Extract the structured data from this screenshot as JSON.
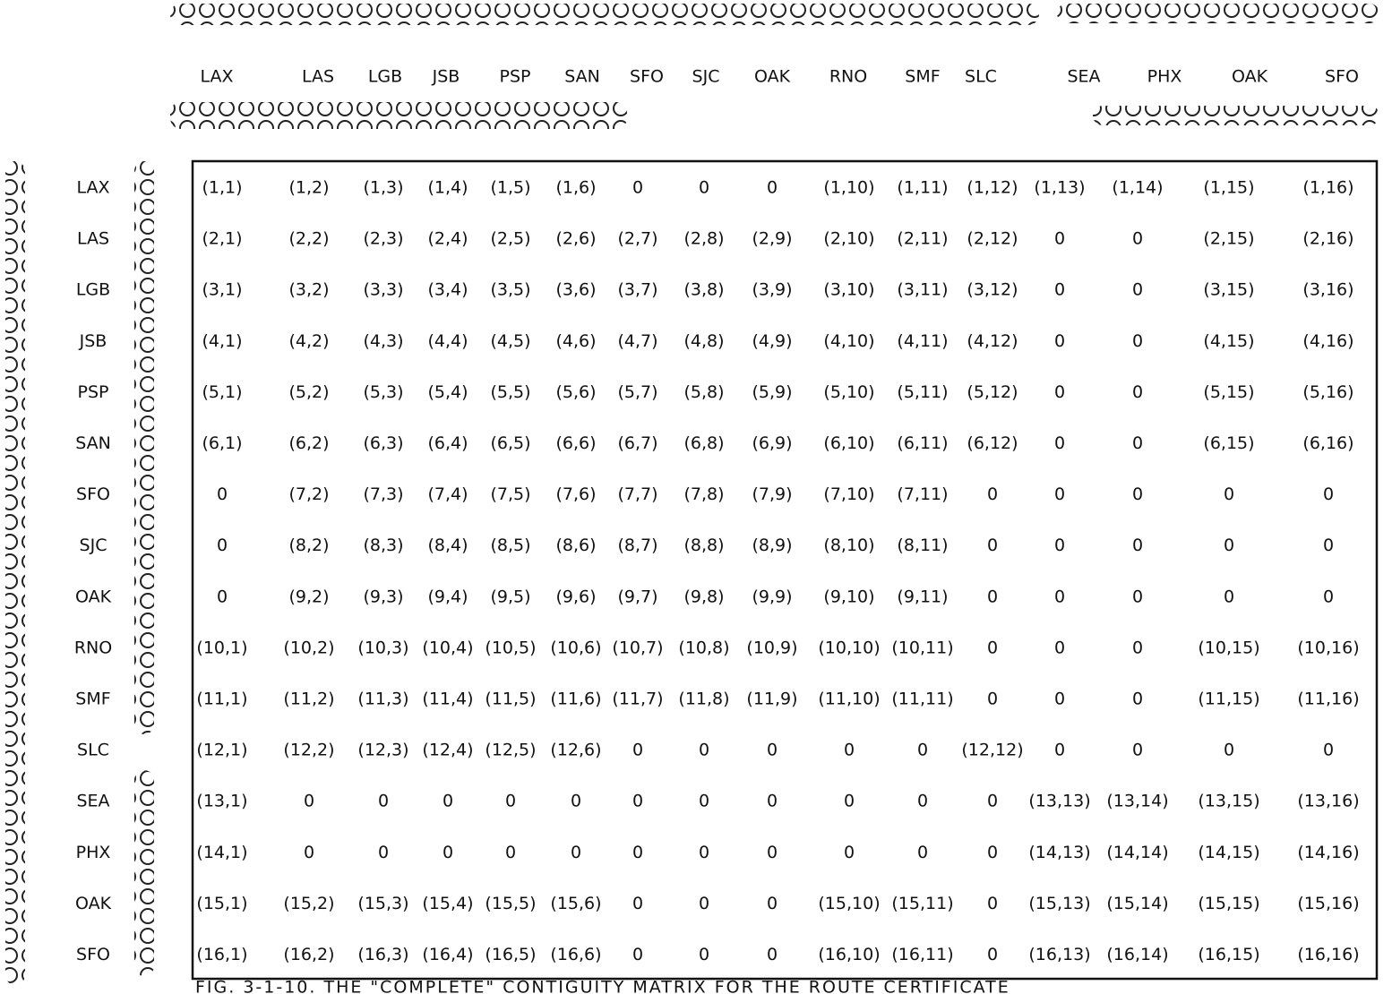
{
  "column_headers": [
    "LAX",
    "LAS",
    "LGB",
    "JSB",
    "PSP",
    "SAN",
    "SFO",
    "SJC",
    "OAK",
    "RNO",
    "SMF",
    "SLC",
    "SEA",
    "PHX",
    "OAK",
    "SFO"
  ],
  "row_headers": [
    "LAX",
    "LAS",
    "LGB",
    "JSB",
    "PSP",
    "SAN",
    "SFO",
    "SJC",
    "OAK",
    "RNO",
    "SMF",
    "SLC",
    "SEA",
    "PHX",
    "OAK",
    "SFO"
  ],
  "table": {
    "rows": [
      [
        "(1,1)",
        "(1,2)",
        "(1,3)",
        "(1,4)",
        "(1,5)",
        "(1,6)",
        "0",
        "0",
        "0",
        "(1,10)",
        "(1,11)",
        "(1,12)",
        "(1,13)",
        "(1,14)",
        "(1,15)",
        "(1,16)"
      ],
      [
        "(2,1)",
        "(2,2)",
        "(2,3)",
        "(2,4)",
        "(2,5)",
        "(2,6)",
        "(2,7)",
        "(2,8)",
        "(2,9)",
        "(2,10)",
        "(2,11)",
        "(2,12)",
        "0",
        "0",
        "(2,15)",
        "(2,16)"
      ],
      [
        "(3,1)",
        "(3,2)",
        "(3,3)",
        "(3,4)",
        "(3,5)",
        "(3,6)",
        "(3,7)",
        "(3,8)",
        "(3,9)",
        "(3,10)",
        "(3,11)",
        "(3,12)",
        "0",
        "0",
        "(3,15)",
        "(3,16)"
      ],
      [
        "(4,1)",
        "(4,2)",
        "(4,3)",
        "(4,4)",
        "(4,5)",
        "(4,6)",
        "(4,7)",
        "(4,8)",
        "(4,9)",
        "(4,10)",
        "(4,11)",
        "(4,12)",
        "0",
        "0",
        "(4,15)",
        "(4,16)"
      ],
      [
        "(5,1)",
        "(5,2)",
        "(5,3)",
        "(5,4)",
        "(5,5)",
        "(5,6)",
        "(5,7)",
        "(5,8)",
        "(5,9)",
        "(5,10)",
        "(5,11)",
        "(5,12)",
        "0",
        "0",
        "(5,15)",
        "(5,16)"
      ],
      [
        "(6,1)",
        "(6,2)",
        "(6,3)",
        "(6,4)",
        "(6,5)",
        "(6,6)",
        "(6,7)",
        "(6,8)",
        "(6,9)",
        "(6,10)",
        "(6,11)",
        "(6,12)",
        "0",
        "0",
        "(6,15)",
        "(6,16)"
      ],
      [
        "0",
        "(7,2)",
        "(7,3)",
        "(7,4)",
        "(7,5)",
        "(7,6)",
        "(7,7)",
        "(7,8)",
        "(7,9)",
        "(7,10)",
        "(7,11)",
        "0",
        "0",
        "0",
        "0",
        "0"
      ],
      [
        "0",
        "(8,2)",
        "(8,3)",
        "(8,4)",
        "(8,5)",
        "(8,6)",
        "(8,7)",
        "(8,8)",
        "(8,9)",
        "(8,10)",
        "(8,11)",
        "0",
        "0",
        "0",
        "0",
        "0"
      ],
      [
        "0",
        "(9,2)",
        "(9,3)",
        "(9,4)",
        "(9,5)",
        "(9,6)",
        "(9,7)",
        "(9,8)",
        "(9,9)",
        "(9,10)",
        "(9,11)",
        "0",
        "0",
        "0",
        "0",
        "0"
      ],
      [
        "(10,1)",
        "(10,2)",
        "(10,3)",
        "(10,4)",
        "(10,5)",
        "(10,6)",
        "(10,7)",
        "(10,8)",
        "(10,9)",
        "(10,10)",
        "(10,11)",
        "0",
        "0",
        "0",
        "(10,15)",
        "(10,16)"
      ],
      [
        "(11,1)",
        "(11,2)",
        "(11,3)",
        "(11,4)",
        "(11,5)",
        "(11,6)",
        "(11,7)",
        "(11,8)",
        "(11,9)",
        "(11,10)",
        "(11,11)",
        "0",
        "0",
        "0",
        "(11,15)",
        "(11,16)"
      ],
      [
        "(12,1)",
        "(12,2)",
        "(12,3)",
        "(12,4)",
        "(12,5)",
        "(12,6)",
        "0",
        "0",
        "0",
        "0",
        "0",
        "(12,12)",
        "0",
        "0",
        "0",
        "0"
      ],
      [
        "(13,1)",
        "0",
        "0",
        "0",
        "0",
        "0",
        "0",
        "0",
        "0",
        "0",
        "0",
        "0",
        "(13,13)",
        "(13,14)",
        "(13,15)",
        "(13,16)"
      ],
      [
        "(14,1)",
        "0",
        "0",
        "0",
        "0",
        "0",
        "0",
        "0",
        "0",
        "0",
        "0",
        "0",
        "(14,13)",
        "(14,14)",
        "(14,15)",
        "(14,16)"
      ],
      [
        "(15,1)",
        "(15,2)",
        "(15,3)",
        "(15,4)",
        "(15,5)",
        "(15,6)",
        "0",
        "0",
        "0",
        "(15,10)",
        "(15,11)",
        "0",
        "(15,13)",
        "(15,14)",
        "(15,15)",
        "(15,16)"
      ],
      [
        "(16,1)",
        "(16,2)",
        "(16,3)",
        "(16,4)",
        "(16,5)",
        "(16,6)",
        "0",
        "0",
        "0",
        "(16,10)",
        "(16,11)",
        "0",
        "(16,13)",
        "(16,14)",
        "(16,15)",
        "(16,16)"
      ]
    ]
  },
  "caption": "FIG. 3-1-10. THE \"COMPLETE\" CONTIGUITY MATRIX FOR THE ROUTE CERTIFICATE"
}
